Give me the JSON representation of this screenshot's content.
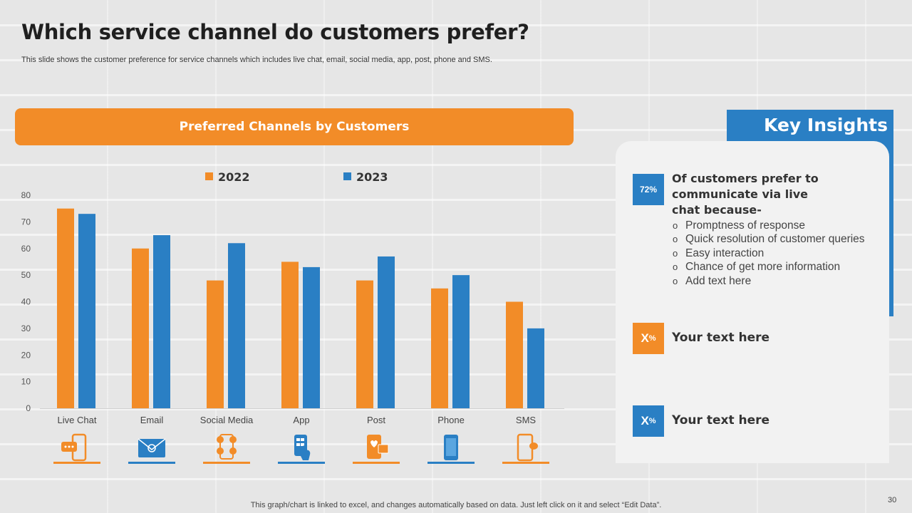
{
  "page": {
    "title": "Which service channel do customers prefer?",
    "subtitle": "This slide shows the customer preference for service channels which includes live chat, email, social media, app, post, phone and SMS.",
    "footnote": "This graph/chart is linked to excel, and changes automatically based on data. Just left click on it and select “Edit Data”.",
    "page_number": "30"
  },
  "chart_header": "Preferred Channels by Customers",
  "chart_data": {
    "type": "bar",
    "title": "Preferred Channels by Customers",
    "categories": [
      "Live Chat",
      "Email",
      "Social Media",
      "App",
      "Post",
      "Phone",
      "SMS"
    ],
    "series": [
      {
        "name": "2022",
        "color": "#f28c28",
        "values": [
          75,
          60,
          48,
          55,
          48,
          45,
          40
        ]
      },
      {
        "name": "2023",
        "color": "#2a7fc4",
        "values": [
          73,
          65,
          62,
          53,
          57,
          50,
          30
        ]
      }
    ],
    "ylim": [
      0,
      80
    ],
    "yticks": [
      0,
      10,
      20,
      30,
      40,
      50,
      60,
      70,
      80
    ],
    "xlabel": "",
    "ylabel": "",
    "legend_position": "top-center",
    "grid": false,
    "category_icons": [
      "phone-chat-icon",
      "email-icon",
      "social-media-icon",
      "app-touch-icon",
      "post-icon",
      "phone-icon",
      "sms-icon"
    ],
    "icon_colors": [
      "#f28c28",
      "#2a7fc4",
      "#f28c28",
      "#2a7fc4",
      "#f28c28",
      "#2a7fc4",
      "#f28c28"
    ]
  },
  "insights": {
    "title": "Key Insights",
    "main": {
      "badge": "72%",
      "heading": "Of customers prefer to communicate via live chat because-",
      "points": [
        "Promptness of response",
        "Quick resolution of customer queries",
        "Easy interaction",
        "Chance of get more information",
        "Add text here"
      ]
    },
    "items": [
      {
        "badge_value": "X",
        "badge_unit": "%",
        "text": "Your text here",
        "color": "#f28c28"
      },
      {
        "badge_value": "X",
        "badge_unit": "%",
        "text": "Your text here",
        "color": "#2a7fc4"
      }
    ]
  }
}
